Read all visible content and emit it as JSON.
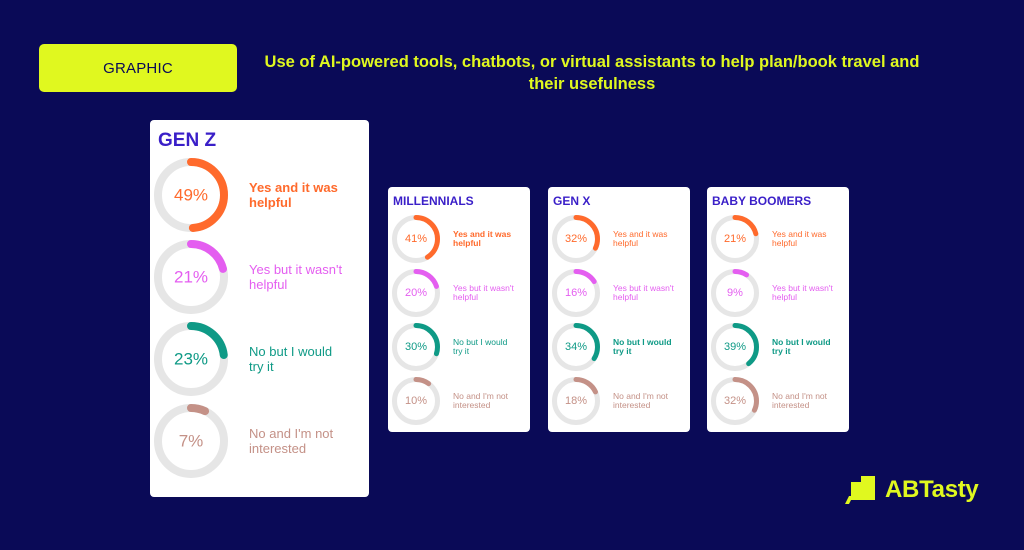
{
  "header": {
    "tag_label": "GRAPHIC",
    "title": "Use of AI-powered tools, chatbots, or virtual assistants to help plan/book travel and their usefulness"
  },
  "logo": {
    "text": "ABTasty",
    "icon": "abtasty-logo-icon"
  },
  "colors": {
    "background": "#0a0a57",
    "accent": "#e0f81f",
    "heading": "#3a1fc8",
    "ring_track": "#e6e6e6",
    "categories": [
      "#ff6a2c",
      "#e45ef0",
      "#0f9a86",
      "#c49187"
    ]
  },
  "chart_data": {
    "type": "donut",
    "categories": [
      "Yes and it was helpful",
      "Yes but it wasn't helpful",
      "No but I would try it",
      "No and I'm not interested"
    ],
    "label_lines": [
      [
        "Yes and it was",
        "helpful"
      ],
      [
        "Yes but it wasn't",
        "helpful"
      ],
      [
        "No but I would",
        "try it"
      ],
      [
        "No and I'm not",
        "interested"
      ]
    ],
    "series": [
      {
        "name": "GEN Z",
        "values": [
          49,
          21,
          23,
          7
        ]
      },
      {
        "name": "MILLENNIALS",
        "values": [
          41,
          20,
          30,
          10
        ]
      },
      {
        "name": "GEN X",
        "values": [
          32,
          16,
          34,
          18
        ]
      },
      {
        "name": "BABY BOOMERS",
        "values": [
          21,
          9,
          39,
          32
        ]
      }
    ],
    "unit": "%"
  }
}
